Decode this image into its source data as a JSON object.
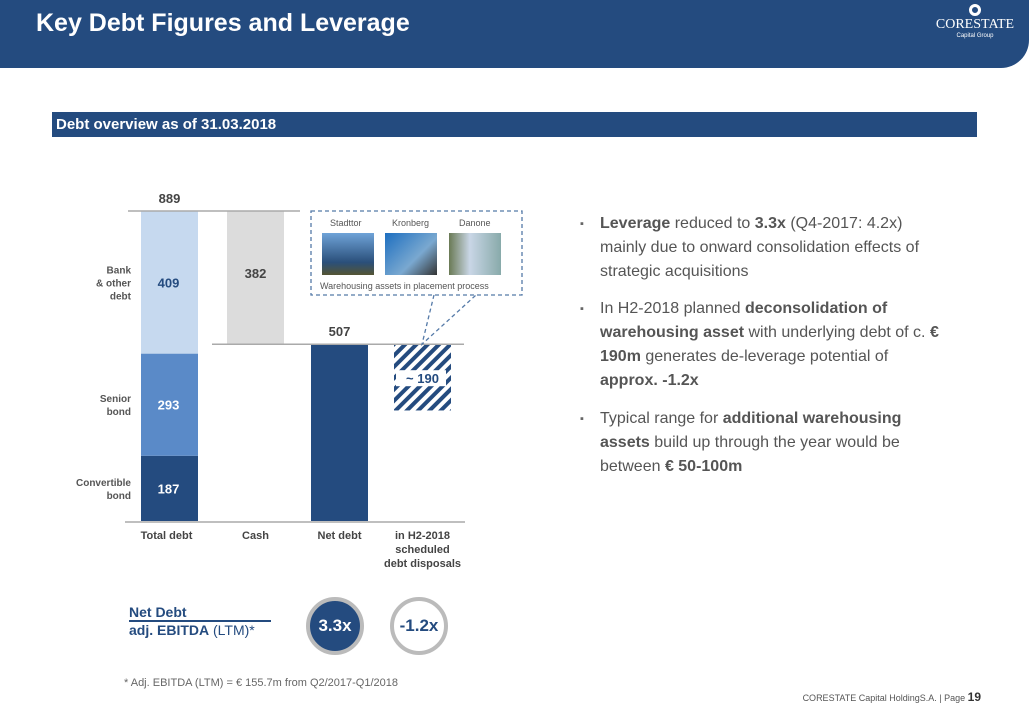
{
  "header": {
    "title": "Key Debt Figures and Leverage",
    "logo": "CORESTATE",
    "logo_sub": "Capital Group"
  },
  "section_title": "Debt overview as of 31.03.2018",
  "chart_data": {
    "type": "bar",
    "subtype": "waterfall",
    "categories": [
      "Total debt",
      "Cash",
      "Net debt",
      "in H2-2018 scheduled debt disposals"
    ],
    "category_lines": [
      [
        "Total debt"
      ],
      [
        "Cash"
      ],
      [
        "Net debt"
      ],
      [
        "in H2-2018",
        "scheduled",
        "debt disposals"
      ]
    ],
    "total": {
      "value": 889,
      "label": "889"
    },
    "stack": [
      {
        "name": "Convertible bond",
        "lines": [
          "Convertible",
          "bond"
        ],
        "value": 187,
        "color": "#244b7f"
      },
      {
        "name": "Senior bond",
        "lines": [
          "Senior",
          "bond"
        ],
        "value": 293,
        "color": "#5a8ac8"
      },
      {
        "name": "Bank & other debt",
        "lines": [
          "Bank",
          "& other",
          "debt"
        ],
        "value": 409,
        "color": "#c6d9ef"
      }
    ],
    "cash": {
      "value": 382,
      "label": "382",
      "color": "#dcdcdc"
    },
    "net_debt": {
      "value": 507,
      "label": "507",
      "color": "#244b7f"
    },
    "disposals": {
      "value": 190,
      "label": "~ 190",
      "pattern": "hatched"
    }
  },
  "callout": {
    "assets": [
      "Stadttor",
      "Kronberg",
      "Danone"
    ],
    "caption": "Warehousing assets in placement process"
  },
  "bullets": [
    {
      "parts": [
        [
          "Leverage",
          1
        ],
        [
          " reduced to ",
          0
        ],
        [
          "3.3x",
          1
        ],
        [
          " (Q4-2017: 4.2x) mainly due to onward consolidation effects of strategic acquisitions",
          0
        ]
      ]
    },
    {
      "parts": [
        [
          "In H2-2018 planned ",
          0
        ],
        [
          "deconsolidation of warehousing asset",
          1
        ],
        [
          " with underlying debt of c. ",
          0
        ],
        [
          "€ 190m",
          1
        ],
        [
          " generates de-leverage potential of ",
          0
        ],
        [
          "approx. -1.2x",
          1
        ]
      ]
    },
    {
      "parts": [
        [
          "Typical range for ",
          0
        ],
        [
          "additional warehousing assets",
          1
        ],
        [
          " build up through the year would be between ",
          0
        ],
        [
          "€ 50-100m",
          1
        ]
      ]
    }
  ],
  "ratio": {
    "numerator": "Net Debt",
    "denominator_bold": "adj. EBITDA",
    "denominator_rest": " (LTM)*",
    "current": "3.3x",
    "change": "-1.2x"
  },
  "footnote": "* Adj. EBITDA (LTM) = € 155.7m from Q2/2017-Q1/2018",
  "footer": {
    "company": "CORESTATE Capital HoldingS.A.  |  Page ",
    "page": "19"
  }
}
